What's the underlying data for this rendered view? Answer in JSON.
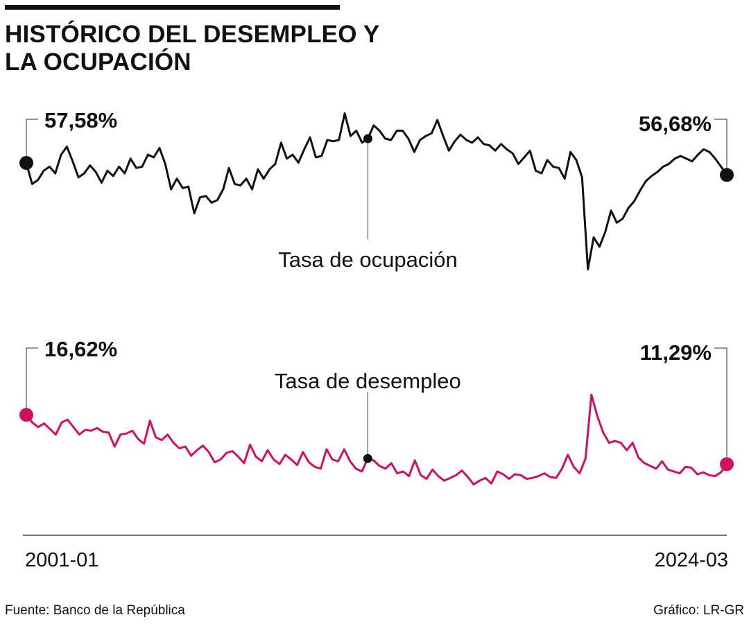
{
  "title": "HISTÓRICO DEL DESEMPLEO Y LA OCUPACIÓN",
  "source": "Fuente: Banco de la República",
  "credit": "Gráfico: LR-GR",
  "colors": {
    "ocupacion": "#111111",
    "desempleo": "#d0105f",
    "axis": "#222222",
    "leader": "#555555"
  },
  "chart_data": {
    "type": "line",
    "x_start": "2001-01",
    "x_end": "2024-03",
    "x_tick_labels": [
      "2001-01",
      "2024-03"
    ],
    "series": [
      {
        "name": "Tasa de ocupación",
        "first_label": "57,58%",
        "last_label": "56,68%",
        "first_value": 57.58,
        "last_value": 56.68,
        "ylim": [
          49,
          62
        ],
        "values": [
          57.58,
          56.0,
          56.3,
          57.0,
          57.3,
          56.8,
          58.2,
          58.8,
          57.7,
          56.5,
          56.8,
          57.4,
          56.9,
          56.1,
          57.0,
          56.6,
          57.3,
          56.8,
          57.9,
          57.2,
          57.3,
          58.2,
          58.0,
          58.7,
          57.5,
          55.6,
          56.4,
          55.7,
          55.8,
          53.8,
          55.0,
          55.1,
          54.6,
          54.8,
          55.6,
          57.2,
          56.0,
          55.9,
          56.4,
          55.6,
          57.1,
          56.4,
          57.1,
          57.5,
          59.1,
          57.9,
          58.2,
          57.6,
          58.6,
          59.5,
          58.0,
          58.1,
          59.3,
          59.2,
          59.3,
          61.3,
          59.6,
          60.0,
          59.1,
          59.4,
          60.4,
          60.0,
          59.4,
          59.3,
          60.0,
          60.0,
          59.4,
          58.4,
          59.3,
          59.6,
          59.8,
          60.8,
          59.6,
          58.5,
          59.2,
          59.7,
          59.3,
          59.1,
          59.5,
          59.0,
          58.9,
          58.5,
          59.0,
          58.6,
          58.3,
          57.5,
          58.0,
          58.5,
          57.0,
          56.8,
          57.8,
          57.3,
          57.2,
          56.4,
          58.4,
          57.8,
          56.5,
          49.6,
          52.0,
          51.3,
          52.4,
          54.0,
          53.1,
          53.4,
          54.2,
          54.7,
          55.5,
          56.2,
          56.6,
          56.9,
          57.3,
          57.5,
          57.9,
          58.1,
          57.9,
          57.7,
          58.2,
          58.6,
          58.4,
          57.9,
          57.3,
          56.68
        ]
      },
      {
        "name": "Tasa de desempleo",
        "first_label": "16,62%",
        "last_label": "11,29%",
        "first_value": 16.62,
        "last_value": 11.29,
        "ylim": [
          7.5,
          21
        ],
        "values": [
          16.62,
          15.8,
          15.3,
          15.7,
          15.1,
          14.5,
          15.8,
          16.1,
          15.3,
          14.5,
          15.0,
          14.9,
          15.2,
          14.8,
          14.7,
          13.2,
          14.5,
          14.6,
          14.9,
          14.0,
          13.5,
          16.0,
          14.2,
          13.9,
          14.5,
          13.6,
          13.0,
          13.2,
          12.2,
          12.8,
          13.3,
          12.6,
          11.5,
          11.8,
          12.5,
          12.7,
          12.1,
          11.4,
          13.4,
          12.1,
          11.6,
          12.8,
          11.8,
          11.3,
          12.3,
          11.8,
          11.2,
          12.6,
          11.5,
          11.0,
          10.8,
          12.9,
          11.8,
          11.6,
          12.9,
          11.6,
          10.8,
          10.5,
          11.9,
          11.7,
          11.1,
          10.8,
          11.4,
          10.3,
          10.5,
          10.0,
          11.7,
          10.1,
          9.7,
          10.7,
          10.0,
          9.5,
          9.8,
          10.1,
          10.6,
          9.9,
          9.1,
          9.5,
          9.8,
          9.2,
          10.5,
          10.2,
          9.7,
          10.2,
          10.1,
          9.7,
          9.8,
          10.0,
          10.3,
          9.9,
          9.8,
          10.8,
          12.3,
          11.0,
          10.3,
          11.9,
          18.8,
          16.5,
          14.7,
          13.6,
          13.8,
          13.6,
          12.8,
          13.6,
          12.0,
          11.4,
          11.1,
          10.8,
          11.6,
          10.7,
          10.5,
          10.3,
          11.0,
          10.9,
          10.2,
          10.4,
          10.1,
          10.0,
          10.4,
          11.29
        ]
      }
    ]
  }
}
